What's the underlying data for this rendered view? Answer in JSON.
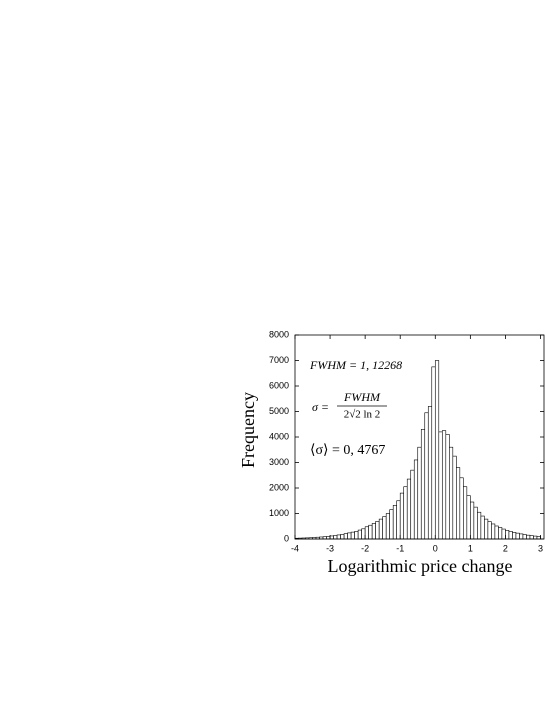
{
  "chart_data": {
    "type": "histogram",
    "x_label": "Logarithmic price change",
    "y_label": "Frequency",
    "annotations": {
      "fwhm": "FWHM = 1, 12268",
      "sigma_lhs": "σ =",
      "sigma_num": "FWHM",
      "sigma_den": "2√2 ln 2",
      "mean_sigma": "⟨σ⟩ = 0, 4767"
    },
    "bins": [
      -4,
      -3.9,
      -3.8,
      -3.7,
      -3.6,
      -3.5,
      -3.4,
      -3.3,
      -3.2,
      -3.1,
      -3,
      -2.9,
      -2.8,
      -2.7,
      -2.6,
      -2.5,
      -2.4,
      -2.3,
      -2.2,
      -2.1,
      -2,
      -1.9,
      -1.8,
      -1.7,
      -1.6,
      -1.5,
      -1.4,
      -1.3,
      -1.2,
      -1.1,
      -1,
      -0.9,
      -0.8,
      -0.7,
      -0.6,
      -0.5,
      -0.4,
      -0.3,
      -0.2,
      -0.1,
      0,
      0.1,
      0.2,
      0.3,
      0.4,
      0.5,
      0.6,
      0.7,
      0.8,
      0.9,
      1,
      1.1,
      1.2,
      1.3,
      1.4,
      1.5,
      1.6,
      1.7,
      1.8,
      1.9,
      2,
      2.1,
      2.2,
      2.3,
      2.4,
      2.5,
      2.6,
      2.7,
      2.8,
      2.9,
      3
    ],
    "values": [
      30,
      35,
      40,
      45,
      50,
      60,
      70,
      80,
      90,
      100,
      120,
      140,
      160,
      180,
      210,
      240,
      270,
      300,
      350,
      400,
      480,
      540,
      610,
      690,
      780,
      880,
      1000,
      1150,
      1320,
      1500,
      1800,
      2050,
      2350,
      2700,
      3100,
      3600,
      4300,
      4950,
      5200,
      6750,
      7000,
      4200,
      4250,
      4100,
      3600,
      3250,
      2800,
      2400,
      2050,
      1700,
      1450,
      1250,
      1050,
      900,
      780,
      680,
      590,
      510,
      450,
      390,
      340,
      300,
      260,
      230,
      200,
      175,
      150,
      130,
      115,
      100
    ],
    "color": "#ffffff",
    "xlim": [
      -4,
      3.1
    ],
    "xticks": [
      -4,
      -3,
      -2,
      -1,
      0,
      1,
      2,
      3
    ],
    "ylim": [
      0,
      8000
    ],
    "yticks": [
      0,
      1000,
      2000,
      3000,
      4000,
      5000,
      6000,
      7000,
      8000
    ],
    "grid": false
  }
}
